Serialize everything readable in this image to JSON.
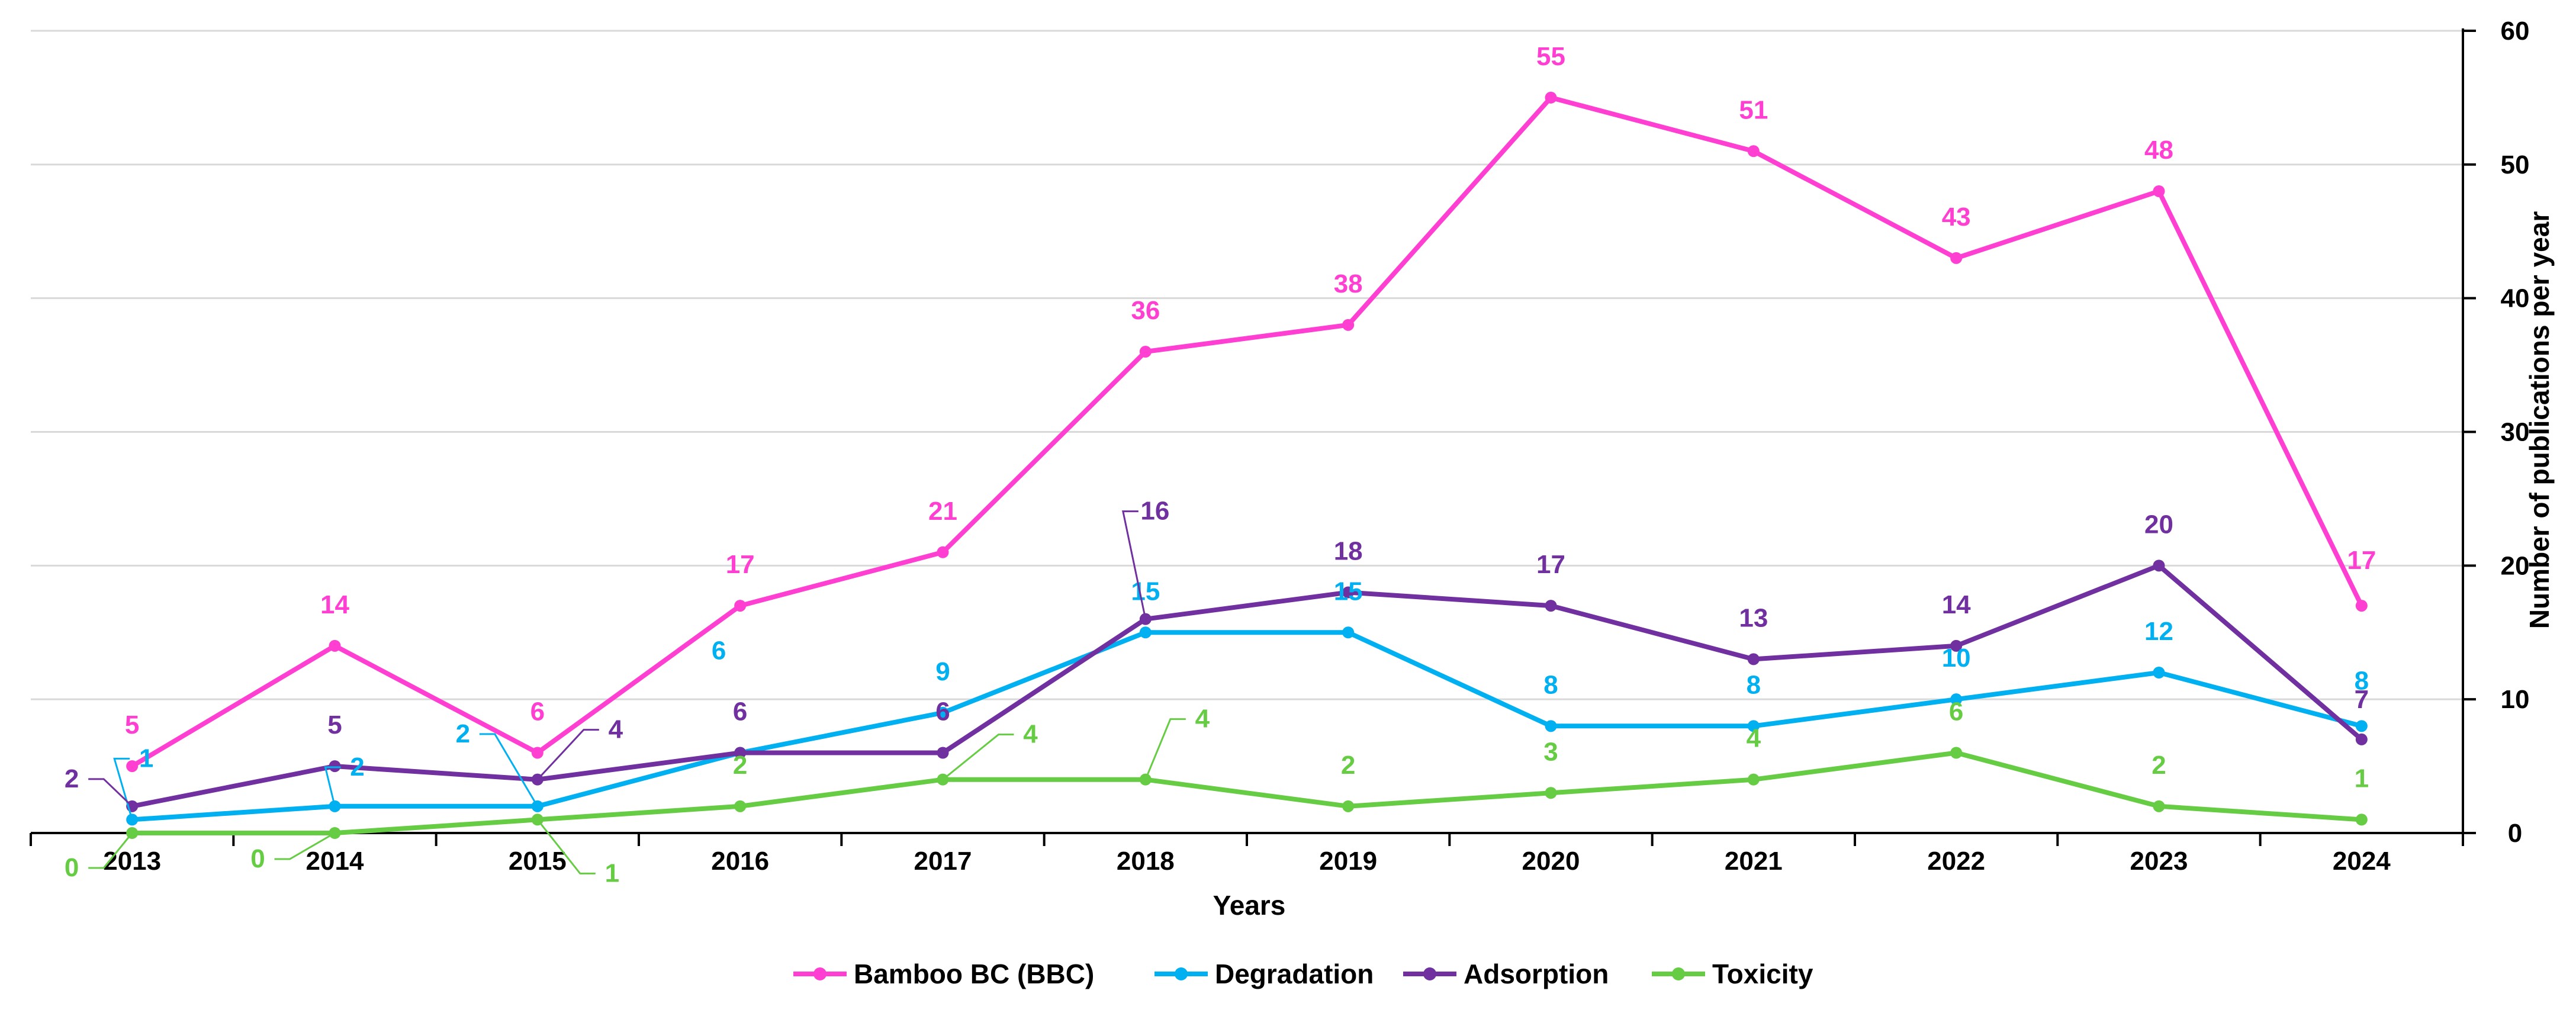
{
  "chart_data": {
    "type": "line",
    "title": "",
    "xlabel": "Years",
    "ylabel": "Number of publications per year",
    "y_axis_position": "right",
    "ylim": [
      0,
      60
    ],
    "yticks": [
      0,
      10,
      20,
      30,
      40,
      50,
      60
    ],
    "grid": "horizontal",
    "legend_position": "bottom",
    "categories": [
      "2013",
      "2014",
      "2015",
      "2016",
      "2017",
      "2018",
      "2019",
      "2020",
      "2021",
      "2022",
      "2023",
      "2024"
    ],
    "series": [
      {
        "name": "Bamboo BC (BBC)",
        "color": "#FF3FD2",
        "values": [
          5,
          14,
          6,
          17,
          21,
          36,
          38,
          55,
          51,
          43,
          48,
          17
        ]
      },
      {
        "name": "Degradation",
        "color": "#00B0F0",
        "values": [
          1,
          2,
          2,
          6,
          9,
          15,
          15,
          8,
          8,
          10,
          12,
          8
        ]
      },
      {
        "name": "Adsorption",
        "color": "#7030A0",
        "values": [
          2,
          5,
          4,
          6,
          6,
          16,
          18,
          17,
          13,
          14,
          20,
          7
        ]
      },
      {
        "name": "Toxicity",
        "color": "#66CC44",
        "values": [
          0,
          0,
          1,
          2,
          4,
          4,
          2,
          3,
          4,
          6,
          2,
          1
        ]
      }
    ]
  }
}
